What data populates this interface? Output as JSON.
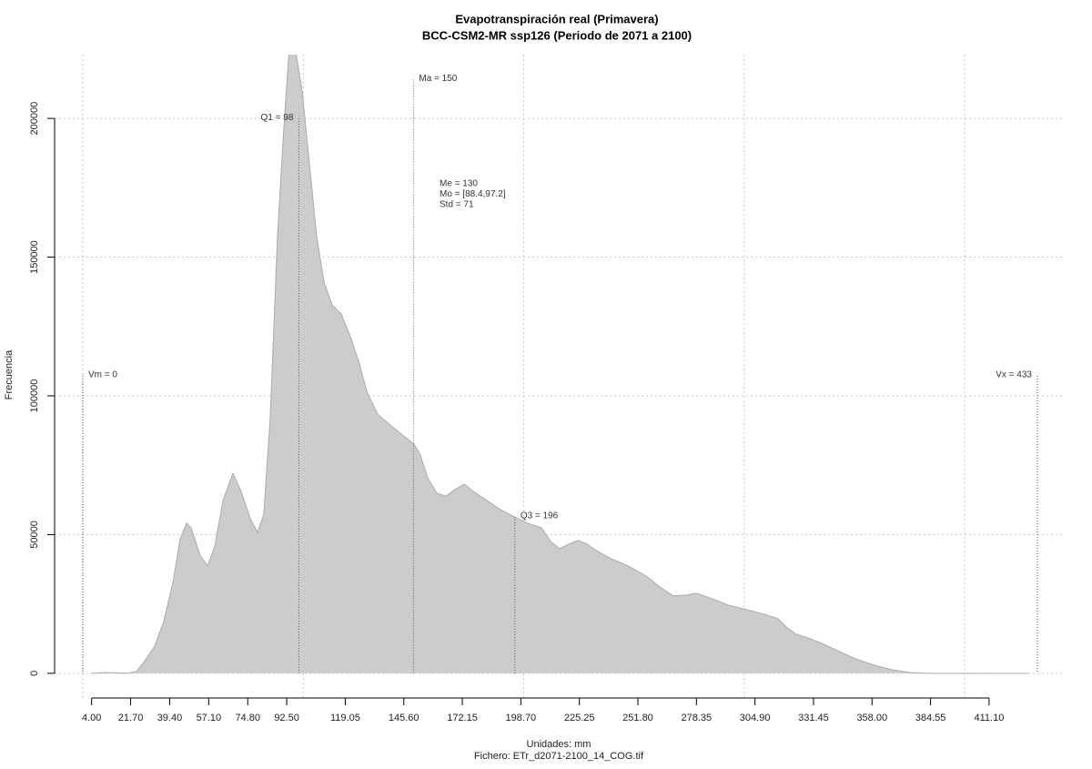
{
  "chart_data": {
    "type": "area",
    "title": "Evapotranspiración real (Primavera)",
    "subtitle": "BCC-CSM2-MR ssp126 (Periodo de 2071 a 2100)",
    "x_label": "Unidades: mm",
    "caption": "Fichero: ETr_d2071-2100_14_COG.tif",
    "y_label": "Frecuencia",
    "color": "#cccccc",
    "line_color": "#aaaaaa",
    "grid": true,
    "x": [
      3.7,
      9.9,
      20.2,
      24.4,
      28.5,
      32.6,
      36.7,
      40.9,
      44.2,
      47.1,
      49.1,
      53.2,
      56.6,
      59.9,
      63.6,
      68.1,
      71.8,
      76.0,
      79.3,
      82.1,
      85.0,
      88.3,
      91.2,
      93.7,
      96.6,
      99.5,
      102.8,
      106.1,
      109.4,
      113.1,
      117.2,
      121.4,
      125.5,
      128.8,
      133.7,
      139.9,
      146.1,
      150.3,
      153.1,
      156.4,
      160.6,
      164.7,
      168.8,
      173.0,
      177.1,
      183.3,
      189.5,
      195.7,
      201.8,
      208.0,
      212.2,
      216.3,
      220.4,
      224.6,
      228.7,
      232.8,
      239.0,
      247.3,
      255.5,
      261.7,
      267.9,
      274.1,
      278.2,
      284.4,
      292.7,
      300.9,
      309.2,
      315.4,
      319.5,
      323.6,
      329.8,
      336.0,
      342.2,
      350.5,
      358.7,
      367.0,
      375.2,
      383.5,
      428.9
    ],
    "values": [
      0,
      300,
      0,
      700,
      4900,
      9800,
      18700,
      32800,
      48500,
      54100,
      52500,
      42600,
      38700,
      45900,
      62300,
      72100,
      65600,
      55700,
      50800,
      57400,
      91800,
      157400,
      196700,
      226000,
      224000,
      209800,
      183600,
      157400,
      141000,
      132800,
      129500,
      121300,
      111500,
      101600,
      93400,
      89200,
      85200,
      82600,
      78700,
      70500,
      64900,
      63900,
      66200,
      68200,
      65600,
      62300,
      59000,
      56400,
      54100,
      52500,
      47500,
      44900,
      46600,
      47900,
      46600,
      44300,
      41600,
      38700,
      35100,
      31100,
      27900,
      28200,
      28900,
      27200,
      24600,
      23000,
      21300,
      19700,
      16400,
      14100,
      12500,
      10500,
      8200,
      5200,
      3000,
      1300,
      300,
      0,
      0
    ],
    "xlim": [
      -12.8,
      445.4
    ],
    "ylim": [
      -8900,
      223000
    ],
    "xticks": [
      {
        "value": 4,
        "label": "4.00"
      },
      {
        "value": 21.7,
        "label": "21.70"
      },
      {
        "value": 39.4,
        "label": "39.40"
      },
      {
        "value": 57.1,
        "label": "57.10"
      },
      {
        "value": 74.8,
        "label": "74.80"
      },
      {
        "value": 92.5,
        "label": "92.50"
      },
      119.05,
      {
        "value": 145.6,
        "label": "145.60"
      },
      172.15,
      {
        "value": 198.7,
        "label": "198.70"
      },
      225.25,
      {
        "value": 251.8,
        "label": "251.80"
      },
      278.35,
      {
        "value": 304.9,
        "label": "304.90"
      },
      331.45,
      {
        "value": 358,
        "label": "358.00"
      },
      384.55,
      {
        "value": 411.1,
        "label": "411.10"
      }
    ],
    "xgrid": [
      0,
      100,
      200,
      300,
      400
    ],
    "yticks": [
      0,
      50000,
      100000,
      150000,
      200000
    ],
    "annotations": [
      {
        "label": "Vm = 0",
        "x": 0,
        "y": 107200,
        "label_side": "right"
      },
      {
        "label": "Q1 = 98",
        "x": 98,
        "y": 200000,
        "label_side": "left"
      },
      {
        "label": "Ma = 150",
        "x": 150,
        "y": 214000,
        "label_side": "right"
      },
      {
        "label": "Q3 = 196",
        "x": 196,
        "y": 56400,
        "label_side": "right"
      },
      {
        "label": "Vx = 433",
        "x": 433,
        "y": 107200,
        "label_side": "left"
      }
    ],
    "stats": [
      "Me = 130",
      "Mo = [88.4,97.2]",
      "Std = 71"
    ]
  }
}
